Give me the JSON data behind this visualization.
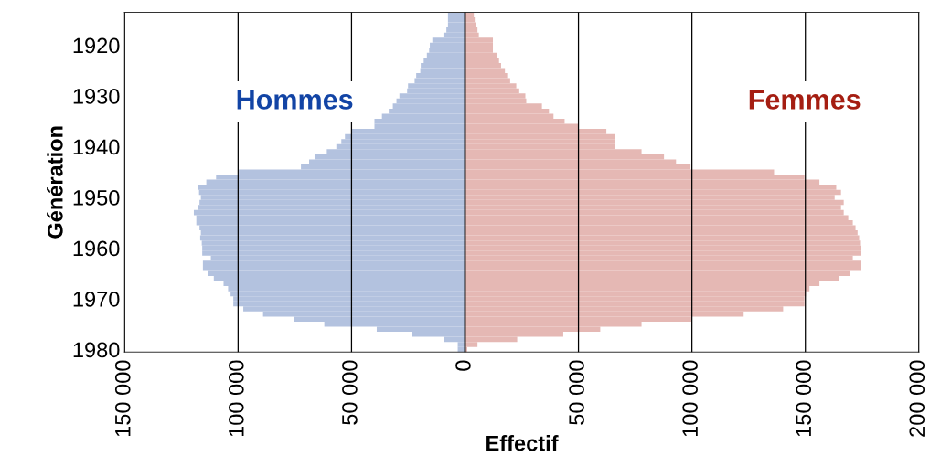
{
  "chart_data": {
    "type": "bar",
    "orientation": "horizontal",
    "stacked": true,
    "xlabel": "Effectif",
    "ylabel": "Génération",
    "categories": [
      null,
      null,
      null,
      null,
      null,
      null,
      "1920",
      null,
      null,
      null,
      null,
      null,
      null,
      null,
      null,
      null,
      "1930",
      null,
      null,
      null,
      null,
      null,
      null,
      null,
      null,
      null,
      "1940",
      null,
      null,
      null,
      null,
      null,
      null,
      null,
      null,
      null,
      "1950",
      null,
      null,
      null,
      null,
      null,
      null,
      null,
      null,
      null,
      "1960",
      null,
      null,
      null,
      null,
      null,
      null,
      null,
      null,
      null,
      "1970",
      null,
      null,
      null,
      null,
      null,
      null,
      null,
      null,
      null,
      "1980"
    ],
    "series": [
      {
        "name": "Hommes",
        "color": "#b3c2df",
        "values": [
          -7500,
          -7500,
          -7500,
          -8200,
          -9500,
          -14400,
          -15500,
          -15800,
          -16800,
          -18200,
          -19500,
          -19700,
          -21500,
          -22200,
          -25100,
          -25500,
          -28900,
          -30200,
          -31800,
          -33600,
          -36600,
          -39900,
          -39900,
          -49900,
          -52900,
          -54500,
          -56700,
          -60900,
          -66300,
          -68700,
          -72300,
          -99700,
          -109700,
          -114000,
          -117500,
          -117200,
          -116400,
          -117000,
          -117500,
          -119500,
          -118400,
          -118400,
          -117000,
          -116400,
          -116700,
          -116000,
          -115800,
          -115800,
          -112000,
          -115500,
          -115500,
          -113100,
          -110700,
          -106400,
          -104400,
          -103300,
          -102100,
          -102100,
          -97700,
          -89000,
          -75300,
          -62000,
          -38900,
          -23500,
          -9100,
          -3200,
          -3200
        ]
      },
      {
        "name": "Femmes",
        "color": "#e5b8b4",
        "values": [
          3900,
          4300,
          4800,
          5500,
          6100,
          12300,
          12300,
          12300,
          13900,
          15000,
          15900,
          17600,
          18600,
          19900,
          22600,
          23900,
          26600,
          27000,
          33900,
          37000,
          39000,
          43900,
          50000,
          62300,
          66000,
          66000,
          66000,
          77800,
          87700,
          93000,
          99400,
          136200,
          149600,
          156200,
          163600,
          165700,
          162900,
          166900,
          165700,
          166900,
          168900,
          170900,
          172100,
          173000,
          173700,
          174100,
          174500,
          174500,
          170900,
          174500,
          174500,
          169700,
          164900,
          156200,
          151800,
          150200,
          149600,
          149600,
          140200,
          122800,
          99700,
          77800,
          59600,
          43300,
          23000,
          5500,
          1000
        ]
      }
    ],
    "xlim": [
      -150000,
      200000
    ],
    "xticks": [
      {
        "value": -150000,
        "label": "150 000"
      },
      {
        "value": -100000,
        "label": "100 000"
      },
      {
        "value": -50000,
        "label": "50 000"
      },
      {
        "value": 0,
        "label": "0"
      },
      {
        "value": 50000,
        "label": "50 000"
      },
      {
        "value": 100000,
        "label": "100 000"
      },
      {
        "value": 150000,
        "label": "150 000"
      },
      {
        "value": 200000,
        "label": "200 000"
      }
    ],
    "grid": "x",
    "ref_lines": [
      {
        "axis": "x",
        "value": 0,
        "color": "#000000"
      }
    ],
    "legend": false
  }
}
